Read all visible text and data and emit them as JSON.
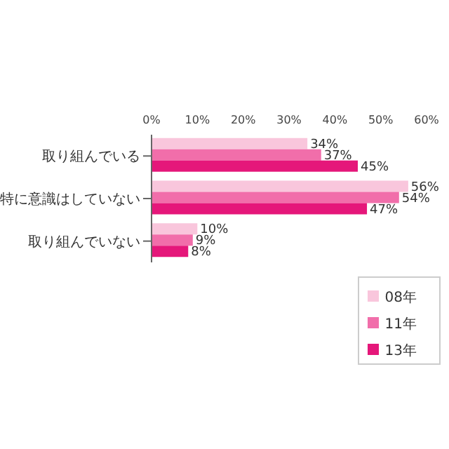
{
  "chart_data": {
    "type": "bar",
    "orientation": "horizontal",
    "categories": [
      "取り組んでいる",
      "特に意識はしていない",
      "取り組んでいない"
    ],
    "series": [
      {
        "name": "08年",
        "color": "#f9c6dc",
        "values": [
          34,
          56,
          10
        ],
        "value_labels": [
          "34%",
          "56%",
          "10%"
        ]
      },
      {
        "name": "11年",
        "color": "#f16eaa",
        "values": [
          37,
          54,
          9
        ],
        "value_labels": [
          "37%",
          "54%",
          "9%"
        ]
      },
      {
        "name": "13年",
        "color": "#e5177a",
        "values": [
          45,
          47,
          8
        ],
        "value_labels": [
          "45%",
          "47%",
          "8%"
        ]
      }
    ],
    "xlim": [
      0,
      60
    ],
    "xticks": [
      {
        "value": 0,
        "label": "0%"
      },
      {
        "value": 10,
        "label": "10%"
      },
      {
        "value": 20,
        "label": "20%"
      },
      {
        "value": 30,
        "label": "30%"
      },
      {
        "value": 40,
        "label": "40%"
      },
      {
        "value": 50,
        "label": "50%"
      },
      {
        "value": 60,
        "label": "60%"
      }
    ],
    "grid": false,
    "legend": "bottom right"
  }
}
